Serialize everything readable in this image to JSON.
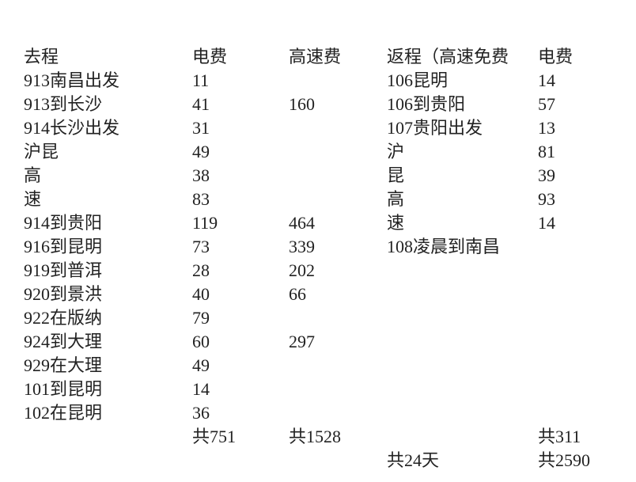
{
  "headers": [
    "去程",
    "电费",
    "高速费",
    "返程（高速免费",
    "电费"
  ],
  "rows": [
    [
      "913南昌出发",
      "11",
      "",
      "106昆明",
      "14"
    ],
    [
      "913到长沙",
      "41",
      "160",
      "106到贵阳",
      "57"
    ],
    [
      "914长沙出发",
      "31",
      "",
      "107贵阳出发",
      "13"
    ],
    [
      "沪昆",
      "49",
      "",
      "沪",
      "81"
    ],
    [
      "高",
      "38",
      "",
      "昆",
      "39"
    ],
    [
      "速",
      "83",
      "",
      "高",
      "93"
    ],
    [
      "914到贵阳",
      "119",
      "464",
      "速",
      "14"
    ],
    [
      "916到昆明",
      "73",
      "339",
      "108凌晨到南昌",
      ""
    ],
    [
      "919到普洱",
      "28",
      "202",
      "",
      ""
    ],
    [
      "920到景洪",
      "40",
      "66",
      "",
      ""
    ],
    [
      "922在版纳",
      "79",
      "",
      "",
      ""
    ],
    [
      "924到大理",
      "60",
      "297",
      "",
      ""
    ],
    [
      "929在大理",
      "49",
      "",
      "",
      ""
    ],
    [
      "101到昆明",
      "14",
      "",
      "",
      ""
    ],
    [
      "102在昆明",
      "36",
      "",
      "",
      ""
    ]
  ],
  "totals": [
    "",
    "共751",
    "共1528",
    "",
    "共311"
  ],
  "grand_totals": [
    "",
    "",
    "",
    "共24天",
    "共2590"
  ]
}
